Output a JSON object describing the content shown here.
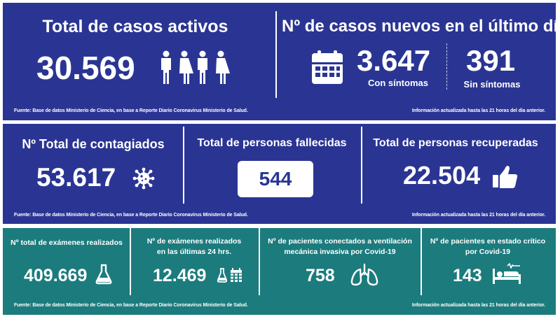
{
  "colors": {
    "blue_panel": "#2a3593",
    "teal_panel": "#1c7b7d",
    "text": "#ffffff"
  },
  "top": {
    "active": {
      "title": "Total de casos activos",
      "value": "30.569",
      "icon": "people-icon"
    },
    "new_cases": {
      "title": "Nº de casos nuevos en el último día",
      "with_symptoms_value": "3.647",
      "with_symptoms_label": "Con síntomas",
      "without_symptoms_value": "391",
      "without_symptoms_label": "Sin síntomas",
      "icon": "calendar-icon"
    },
    "footer_left": "Fuente: Base de datos Ministerio de Ciencia, en base a Reporte Diario Coronavirus Ministerio de Salud.",
    "footer_right": "Información actualizada hasta las 21 horas  del día anterior."
  },
  "middle": {
    "infected": {
      "title": "Nº Total de contagiados",
      "value": "53.617",
      "icon": "virus-icon"
    },
    "deceased": {
      "title": "Total de personas fallecidas",
      "value": "544"
    },
    "recovered": {
      "title": "Total de personas recuperadas",
      "value": "22.504",
      "icon": "thumbs-up-icon"
    },
    "footer_left": "Fuente: Base de datos Ministerio de Ciencia, en base a Reporte Diario Coronavirus Ministerio de Salud.",
    "footer_right": "Información actualizada hasta las 21 horas  del día anterior."
  },
  "bottom": {
    "exams_total": {
      "title": "Nº total de exámenes realizados",
      "value": "409.669",
      "icon": "flask-icon"
    },
    "exams_24h": {
      "title_line1": "Nº de exámenes realizados",
      "title_line2": "en las últimas 24 hrs.",
      "value": "12.469",
      "icon": "flask-calendar-icon"
    },
    "ventilation": {
      "title_line1": "Nº de pacientes conectados a ventilación",
      "title_line2": "mecánica invasiva por Covid-19",
      "value": "758",
      "icon": "lungs-icon"
    },
    "critical": {
      "title_line1": "Nº de pacientes en estado crítico",
      "title_line2": "por Covid-19",
      "value": "143",
      "icon": "hospital-bed-icon"
    },
    "footer_left": "Fuente: Base de datos Ministerio de Ciencia, en base a Reporte Diario Coronavirus Ministerio de Salud.",
    "footer_right": "Información actualizada hasta las 21 horas  del día anterior."
  }
}
